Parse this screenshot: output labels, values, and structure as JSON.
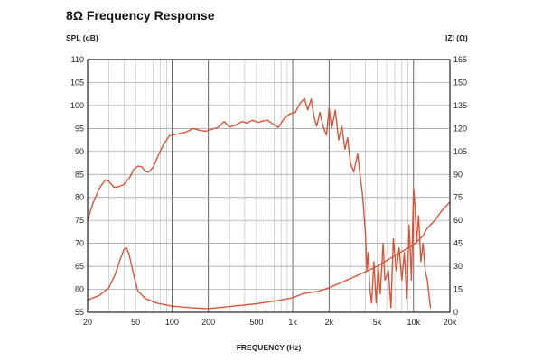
{
  "chart_data": {
    "type": "line",
    "title": "8Ω Frequency Response",
    "xlabel": "FREQUENCY (Hz)",
    "ylabel": "SPL (dB)",
    "y2label": "IZI (Ω)",
    "xscale": "log",
    "xlim": [
      20,
      20000
    ],
    "ylim": [
      55,
      110
    ],
    "y2lim": [
      0,
      165
    ],
    "x_tick_labels": [
      {
        "v": 20,
        "t": "20"
      },
      {
        "v": 50,
        "t": "50"
      },
      {
        "v": 100,
        "t": "100"
      },
      {
        "v": 200,
        "t": "200"
      },
      {
        "v": 500,
        "t": "500"
      },
      {
        "v": 1000,
        "t": "1k"
      },
      {
        "v": 2000,
        "t": "2k"
      },
      {
        "v": 5000,
        "t": "5k"
      },
      {
        "v": 10000,
        "t": "10k"
      },
      {
        "v": 20000,
        "t": "20k"
      }
    ],
    "y_ticks": [
      "55",
      "60",
      "65",
      "70",
      "75",
      "80",
      "85",
      "90",
      "95",
      "100",
      "105",
      "110"
    ],
    "y2_ticks": [
      "0",
      "15",
      "30",
      "45",
      "60",
      "75",
      "90",
      "105",
      "120",
      "135",
      "150",
      "165"
    ],
    "grid": true,
    "line_color": "#d9553a",
    "series": [
      {
        "name": "",
        "axis": "left",
        "points": [
          [
            20,
            75
          ],
          [
            22,
            78.5
          ],
          [
            25,
            82
          ],
          [
            28,
            83.8
          ],
          [
            30,
            83.5
          ],
          [
            33,
            82.2
          ],
          [
            36,
            82.3
          ],
          [
            40,
            82.8
          ],
          [
            45,
            84.5
          ],
          [
            48,
            86
          ],
          [
            52,
            86.8
          ],
          [
            56,
            86.7
          ],
          [
            60,
            85.6
          ],
          [
            64,
            85.5
          ],
          [
            70,
            86.6
          ],
          [
            75,
            88.5
          ],
          [
            85,
            91.5
          ],
          [
            95,
            93.4
          ],
          [
            110,
            93.8
          ],
          [
            130,
            94.2
          ],
          [
            150,
            95
          ],
          [
            170,
            94.6
          ],
          [
            190,
            94.4
          ],
          [
            210,
            94.8
          ],
          [
            240,
            95.2
          ],
          [
            270,
            96.5
          ],
          [
            300,
            95.3
          ],
          [
            340,
            95.8
          ],
          [
            380,
            96.5
          ],
          [
            420,
            96.2
          ],
          [
            460,
            96.8
          ],
          [
            520,
            96.3
          ],
          [
            560,
            96.6
          ],
          [
            620,
            96.8
          ],
          [
            700,
            95.8
          ],
          [
            760,
            95.2
          ],
          [
            850,
            97.2
          ],
          [
            950,
            98.2
          ],
          [
            1050,
            98.5
          ],
          [
            1150,
            100.5
          ],
          [
            1250,
            101.5
          ],
          [
            1330,
            99
          ],
          [
            1420,
            101.4
          ],
          [
            1500,
            97.5
          ],
          [
            1580,
            95.5
          ],
          [
            1680,
            98.5
          ],
          [
            1780,
            95.5
          ],
          [
            1900,
            93.5
          ],
          [
            2000,
            99.5
          ],
          [
            2100,
            95
          ],
          [
            2250,
            99
          ],
          [
            2400,
            92.5
          ],
          [
            2550,
            95.5
          ],
          [
            2700,
            90.5
          ],
          [
            2850,
            93
          ],
          [
            3000,
            87.5
          ],
          [
            3200,
            85.5
          ],
          [
            3450,
            89.5
          ],
          [
            3600,
            85
          ],
          [
            3800,
            80
          ],
          [
            4000,
            72
          ],
          [
            4100,
            64
          ],
          [
            4200,
            68
          ],
          [
            4350,
            60
          ],
          [
            4500,
            57
          ],
          [
            4700,
            66
          ],
          [
            4900,
            57
          ],
          [
            5100,
            65
          ],
          [
            5300,
            59
          ],
          [
            5600,
            70
          ],
          [
            5800,
            62
          ],
          [
            6200,
            64
          ],
          [
            6500,
            56
          ],
          [
            6800,
            71
          ],
          [
            7200,
            64
          ],
          [
            7600,
            69
          ],
          [
            8000,
            62
          ],
          [
            8400,
            68
          ],
          [
            8800,
            58
          ],
          [
            9200,
            74
          ],
          [
            9600,
            62
          ],
          [
            10000,
            82
          ],
          [
            10300,
            78
          ],
          [
            10600,
            70
          ],
          [
            11000,
            76
          ],
          [
            11500,
            66
          ],
          [
            12000,
            70
          ],
          [
            12500,
            64
          ],
          [
            13000,
            62
          ],
          [
            13800,
            56
          ]
        ]
      },
      {
        "name": "",
        "axis": "right",
        "points": [
          [
            20,
            8
          ],
          [
            25,
            11
          ],
          [
            30,
            16
          ],
          [
            34,
            25
          ],
          [
            37,
            34
          ],
          [
            40,
            41
          ],
          [
            42,
            42
          ],
          [
            44,
            38
          ],
          [
            48,
            25
          ],
          [
            52,
            14
          ],
          [
            60,
            9
          ],
          [
            75,
            6
          ],
          [
            100,
            4
          ],
          [
            150,
            2.8
          ],
          [
            200,
            2.4
          ],
          [
            300,
            3.8
          ],
          [
            500,
            5.6
          ],
          [
            800,
            8
          ],
          [
            1000,
            9.5
          ],
          [
            1200,
            12
          ],
          [
            1400,
            13
          ],
          [
            1600,
            13.5
          ],
          [
            2000,
            16
          ],
          [
            3000,
            22
          ],
          [
            5000,
            30
          ],
          [
            7000,
            37
          ],
          [
            10000,
            44
          ],
          [
            12000,
            50
          ],
          [
            13000,
            55
          ],
          [
            15000,
            60
          ],
          [
            17000,
            66
          ],
          [
            20000,
            72
          ]
        ]
      }
    ]
  }
}
